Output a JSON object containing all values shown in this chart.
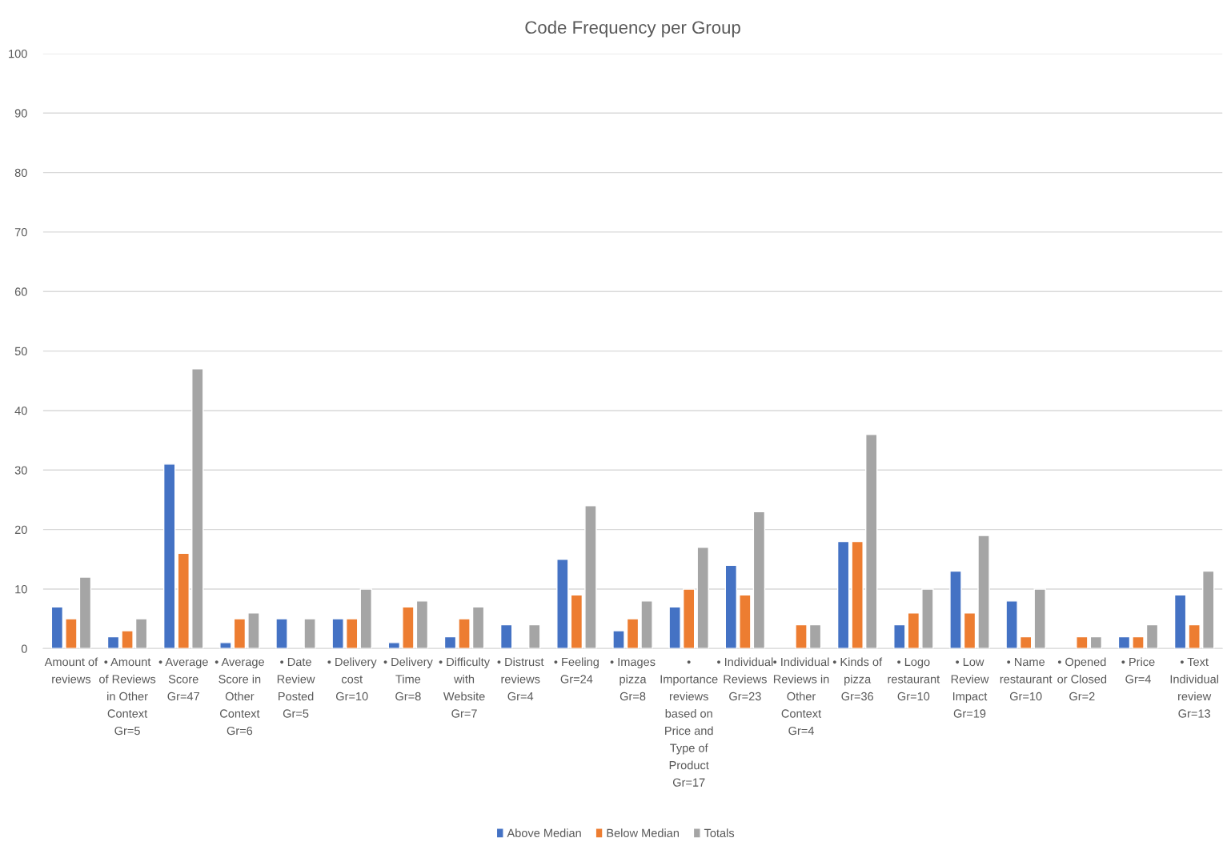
{
  "chart_data": {
    "type": "bar",
    "title": "Code Frequency per Group",
    "categories": [
      "Amount of\nreviews",
      "• Amount\nof Reviews\nin Other\nContext\nGr=5",
      "• Average\nScore\nGr=47",
      "• Average\nScore in\nOther\nContext\nGr=6",
      "• Date\nReview\nPosted\nGr=5",
      "• Delivery\ncost\nGr=10",
      "• Delivery\nTime\nGr=8",
      "• Difficulty\nwith\nWebsite\nGr=7",
      "• Distrust\nreviews\nGr=4",
      "• Feeling\nGr=24",
      "• Images\npizza\nGr=8",
      "•\nImportance\nreviews\nbased on\nPrice and\nType of\nProduct\nGr=17",
      "• Individual\nReviews\nGr=23",
      "• Individual\nReviews in\nOther\nContext\nGr=4",
      "• Kinds of\npizza\nGr=36",
      "• Logo\nrestaurant\nGr=10",
      "• Low\nReview\nImpact\nGr=19",
      "• Name\nrestaurant\nGr=10",
      "• Opened\nor Closed\nGr=2",
      "• Price\nGr=4",
      "• Text\nIndividual\nreview\nGr=13"
    ],
    "series": [
      {
        "name": "Above Median",
        "color": "#4472c4",
        "values": [
          7,
          2,
          31,
          1,
          5,
          5,
          1,
          2,
          4,
          15,
          3,
          7,
          14,
          0,
          18,
          4,
          13,
          8,
          0,
          2,
          9
        ]
      },
      {
        "name": "Below Median",
        "color": "#ed7d31",
        "values": [
          5,
          3,
          16,
          5,
          0,
          5,
          7,
          5,
          0,
          9,
          5,
          10,
          9,
          4,
          18,
          6,
          6,
          2,
          2,
          2,
          4
        ]
      },
      {
        "name": "Totals",
        "color": "#a5a5a5",
        "values": [
          12,
          5,
          47,
          6,
          5,
          10,
          8,
          7,
          4,
          24,
          8,
          17,
          23,
          4,
          36,
          10,
          19,
          10,
          2,
          4,
          13
        ]
      }
    ],
    "ylim": [
      0,
      100
    ],
    "yticks": [
      0,
      10,
      20,
      30,
      40,
      50,
      60,
      70,
      80,
      90,
      100
    ],
    "grid": "y",
    "legend": "bottom"
  }
}
